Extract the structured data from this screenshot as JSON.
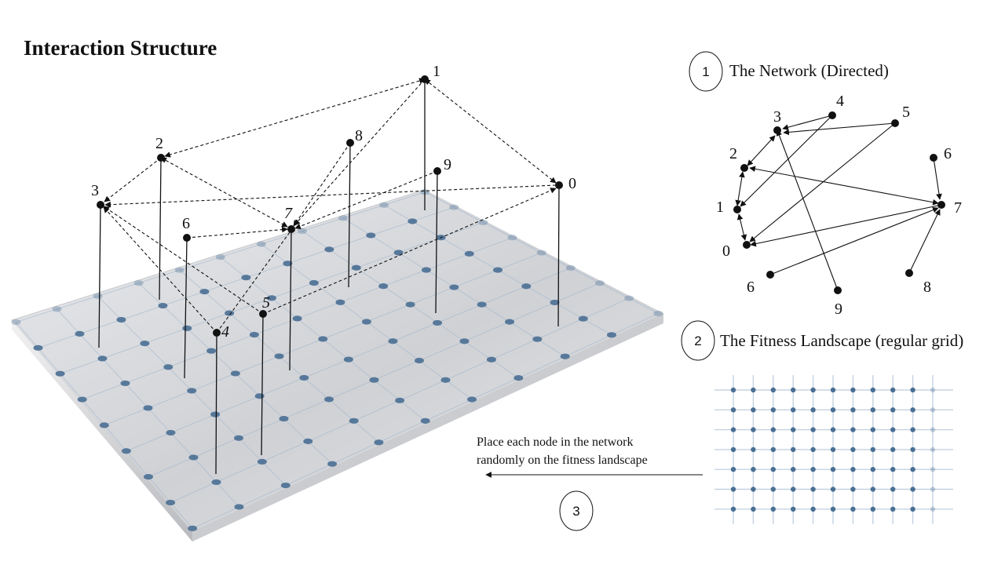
{
  "title": "Interaction Structure",
  "steps": [
    {
      "number": "1",
      "label": "The Network (Directed)"
    },
    {
      "number": "2",
      "label": "The Fitness Landscape (regular grid)"
    },
    {
      "number": "3",
      "label": ""
    }
  ],
  "instruction": {
    "line1": "Place each node in the network",
    "line2": "randomly on the fitness landscape"
  },
  "network": {
    "nodes": [
      {
        "id": "3",
        "label": "3"
      },
      {
        "id": "4",
        "label": "4"
      },
      {
        "id": "5",
        "label": "5"
      },
      {
        "id": "2",
        "label": "2"
      },
      {
        "id": "6a",
        "label": "6"
      },
      {
        "id": "1",
        "label": "1"
      },
      {
        "id": "7",
        "label": "7"
      },
      {
        "id": "0",
        "label": "0"
      },
      {
        "id": "6b",
        "label": "6"
      },
      {
        "id": "8",
        "label": "8"
      },
      {
        "id": "9",
        "label": "9"
      }
    ]
  },
  "landscape_nodes": [
    {
      "id": "1",
      "label": "1"
    },
    {
      "id": "2",
      "label": "2"
    },
    {
      "id": "3",
      "label": "3"
    },
    {
      "id": "6",
      "label": "6"
    },
    {
      "id": "7",
      "label": "7"
    },
    {
      "id": "8",
      "label": "8"
    },
    {
      "id": "9",
      "label": "9"
    },
    {
      "id": "0",
      "label": "0"
    },
    {
      "id": "4",
      "label": "4"
    },
    {
      "id": "5",
      "label": "5"
    }
  ],
  "colors": {
    "grid_dot": "#4a6f94",
    "grid_line": "#9fb5cc",
    "platform_top": "#d9dadd",
    "ink": "#111111"
  }
}
